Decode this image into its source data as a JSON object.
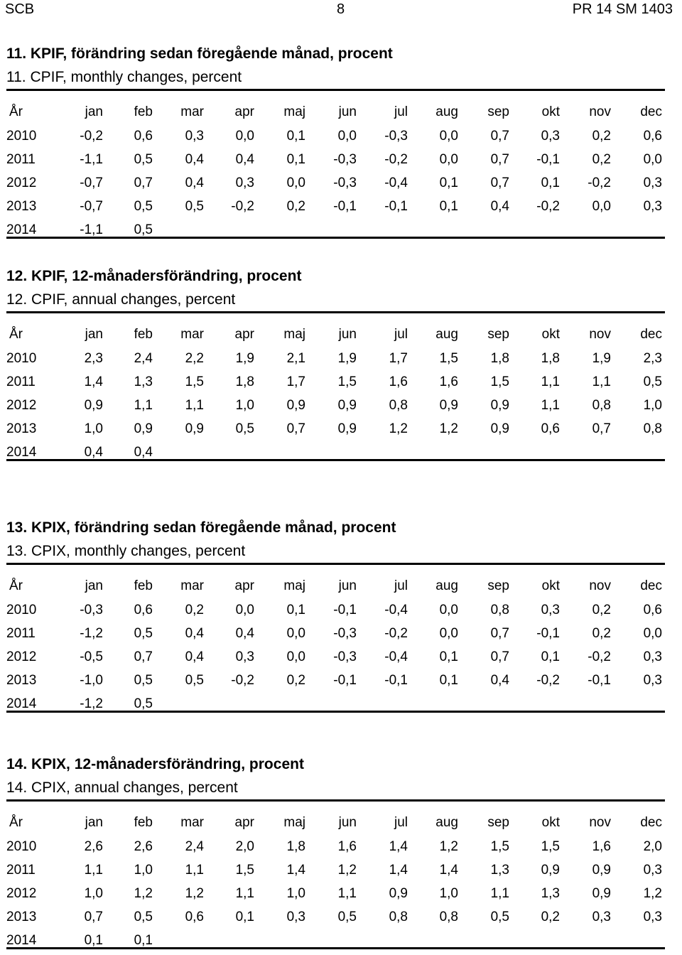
{
  "header": {
    "left": "SCB",
    "center": "8",
    "right": "PR 14 SM 1403"
  },
  "columns": [
    "År",
    "jan",
    "feb",
    "mar",
    "apr",
    "maj",
    "jun",
    "jul",
    "aug",
    "sep",
    "okt",
    "nov",
    "dec"
  ],
  "tables": [
    {
      "title_sv": "11. KPIF, förändring sedan föregående månad, procent",
      "title_en": "11. CPIF, monthly changes, percent",
      "rows": [
        {
          "year": "2010",
          "values": [
            "-0,2",
            "0,6",
            "0,3",
            "0,0",
            "0,1",
            "0,0",
            "-0,3",
            "0,0",
            "0,7",
            "0,3",
            "0,2",
            "0,6"
          ]
        },
        {
          "year": "2011",
          "values": [
            "-1,1",
            "0,5",
            "0,4",
            "0,4",
            "0,1",
            "-0,3",
            "-0,2",
            "0,0",
            "0,7",
            "-0,1",
            "0,2",
            "0,0"
          ]
        },
        {
          "year": "2012",
          "values": [
            "-0,7",
            "0,7",
            "0,4",
            "0,3",
            "0,0",
            "-0,3",
            "-0,4",
            "0,1",
            "0,7",
            "0,1",
            "-0,2",
            "0,3"
          ]
        },
        {
          "year": "2013",
          "values": [
            "-0,7",
            "0,5",
            "0,5",
            "-0,2",
            "0,2",
            "-0,1",
            "-0,1",
            "0,1",
            "0,4",
            "-0,2",
            "0,0",
            "0,3"
          ]
        },
        {
          "year": "2014",
          "values": [
            "-1,1",
            "0,5"
          ]
        }
      ]
    },
    {
      "title_sv": "12. KPIF, 12-månadersförändring, procent",
      "title_en": "12. CPIF, annual changes, percent",
      "rows": [
        {
          "year": "2010",
          "values": [
            "2,3",
            "2,4",
            "2,2",
            "1,9",
            "2,1",
            "1,9",
            "1,7",
            "1,5",
            "1,8",
            "1,8",
            "1,9",
            "2,3"
          ]
        },
        {
          "year": "2011",
          "values": [
            "1,4",
            "1,3",
            "1,5",
            "1,8",
            "1,7",
            "1,5",
            "1,6",
            "1,6",
            "1,5",
            "1,1",
            "1,1",
            "0,5"
          ]
        },
        {
          "year": "2012",
          "values": [
            "0,9",
            "1,1",
            "1,1",
            "1,0",
            "0,9",
            "0,9",
            "0,8",
            "0,9",
            "0,9",
            "1,1",
            "0,8",
            "1,0"
          ]
        },
        {
          "year": "2013",
          "values": [
            "1,0",
            "0,9",
            "0,9",
            "0,5",
            "0,7",
            "0,9",
            "1,2",
            "1,2",
            "0,9",
            "0,6",
            "0,7",
            "0,8"
          ]
        },
        {
          "year": "2014",
          "values": [
            "0,4",
            "0,4"
          ]
        }
      ]
    },
    {
      "title_sv": "13. KPIX, förändring sedan föregående månad, procent",
      "title_en": "13. CPIX, monthly changes, percent",
      "rows": [
        {
          "year": "2010",
          "values": [
            "-0,3",
            "0,6",
            "0,2",
            "0,0",
            "0,1",
            "-0,1",
            "-0,4",
            "0,0",
            "0,8",
            "0,3",
            "0,2",
            "0,6"
          ]
        },
        {
          "year": "2011",
          "values": [
            "-1,2",
            "0,5",
            "0,4",
            "0,4",
            "0,0",
            "-0,3",
            "-0,2",
            "0,0",
            "0,7",
            "-0,1",
            "0,2",
            "0,0"
          ]
        },
        {
          "year": "2012",
          "values": [
            "-0,5",
            "0,7",
            "0,4",
            "0,3",
            "0,0",
            "-0,3",
            "-0,4",
            "0,1",
            "0,7",
            "0,1",
            "-0,2",
            "0,3"
          ]
        },
        {
          "year": "2013",
          "values": [
            "-1,0",
            "0,5",
            "0,5",
            "-0,2",
            "0,2",
            "-0,1",
            "-0,1",
            "0,1",
            "0,4",
            "-0,2",
            "-0,1",
            "0,3"
          ]
        },
        {
          "year": "2014",
          "values": [
            "-1,2",
            "0,5"
          ]
        }
      ]
    },
    {
      "title_sv": "14. KPIX, 12-månadersförändring, procent",
      "title_en": "14. CPIX, annual changes, percent",
      "rows": [
        {
          "year": "2010",
          "values": [
            "2,6",
            "2,6",
            "2,4",
            "2,0",
            "1,8",
            "1,6",
            "1,4",
            "1,2",
            "1,5",
            "1,5",
            "1,6",
            "2,0"
          ]
        },
        {
          "year": "2011",
          "values": [
            "1,1",
            "1,0",
            "1,1",
            "1,5",
            "1,4",
            "1,2",
            "1,4",
            "1,4",
            "1,3",
            "0,9",
            "0,9",
            "0,3"
          ]
        },
        {
          "year": "2012",
          "values": [
            "1,0",
            "1,2",
            "1,2",
            "1,1",
            "1,0",
            "1,1",
            "0,9",
            "1,0",
            "1,1",
            "1,3",
            "0,9",
            "1,2"
          ]
        },
        {
          "year": "2013",
          "values": [
            "0,7",
            "0,5",
            "0,6",
            "0,1",
            "0,3",
            "0,5",
            "0,8",
            "0,8",
            "0,5",
            "0,2",
            "0,3",
            "0,3"
          ]
        },
        {
          "year": "2014",
          "values": [
            "0,1",
            "0,1"
          ]
        }
      ]
    }
  ]
}
